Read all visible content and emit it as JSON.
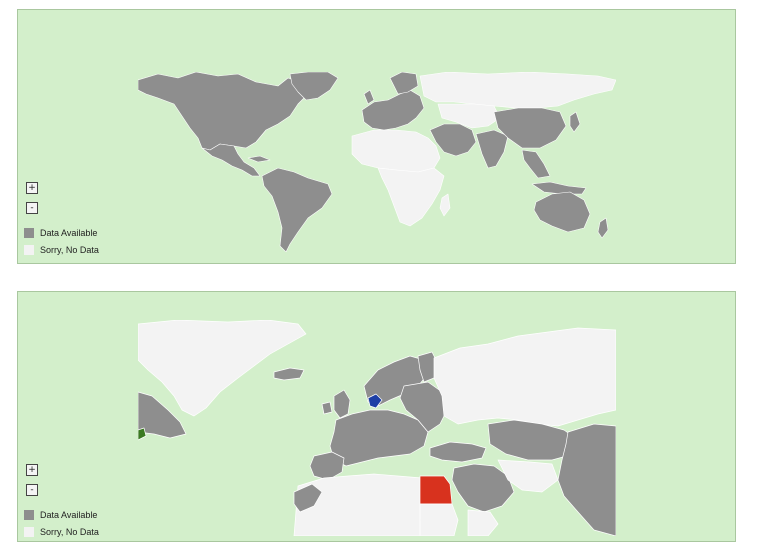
{
  "colors": {
    "ocean": "#d3efcb",
    "data_available": "#8e8e8e",
    "no_data": "#f3f3f3",
    "highlight_red": "#d8321e",
    "highlight_blue": "#1d3fa6",
    "highlight_green": "#3b7a22"
  },
  "maps": [
    {
      "view": "world",
      "zoom_in_label": "+",
      "zoom_out_label": "-",
      "legend": [
        {
          "label": "Data Available",
          "color": "#8e8e8e"
        },
        {
          "label": "Sorry, No Data",
          "color": "#f3f3f3"
        }
      ]
    },
    {
      "view": "europe-zoomed",
      "zoom_in_label": "+",
      "zoom_out_label": "-",
      "highlighted": [
        {
          "region": "egypt",
          "color": "#d8321e"
        },
        {
          "region": "denmark",
          "color": "#1d3fa6"
        },
        {
          "region": "canada-east-edge",
          "color": "#3b7a22"
        }
      ],
      "legend": [
        {
          "label": "Data Available",
          "color": "#8e8e8e"
        },
        {
          "label": "Sorry, No Data",
          "color": "#f3f3f3"
        }
      ]
    }
  ]
}
